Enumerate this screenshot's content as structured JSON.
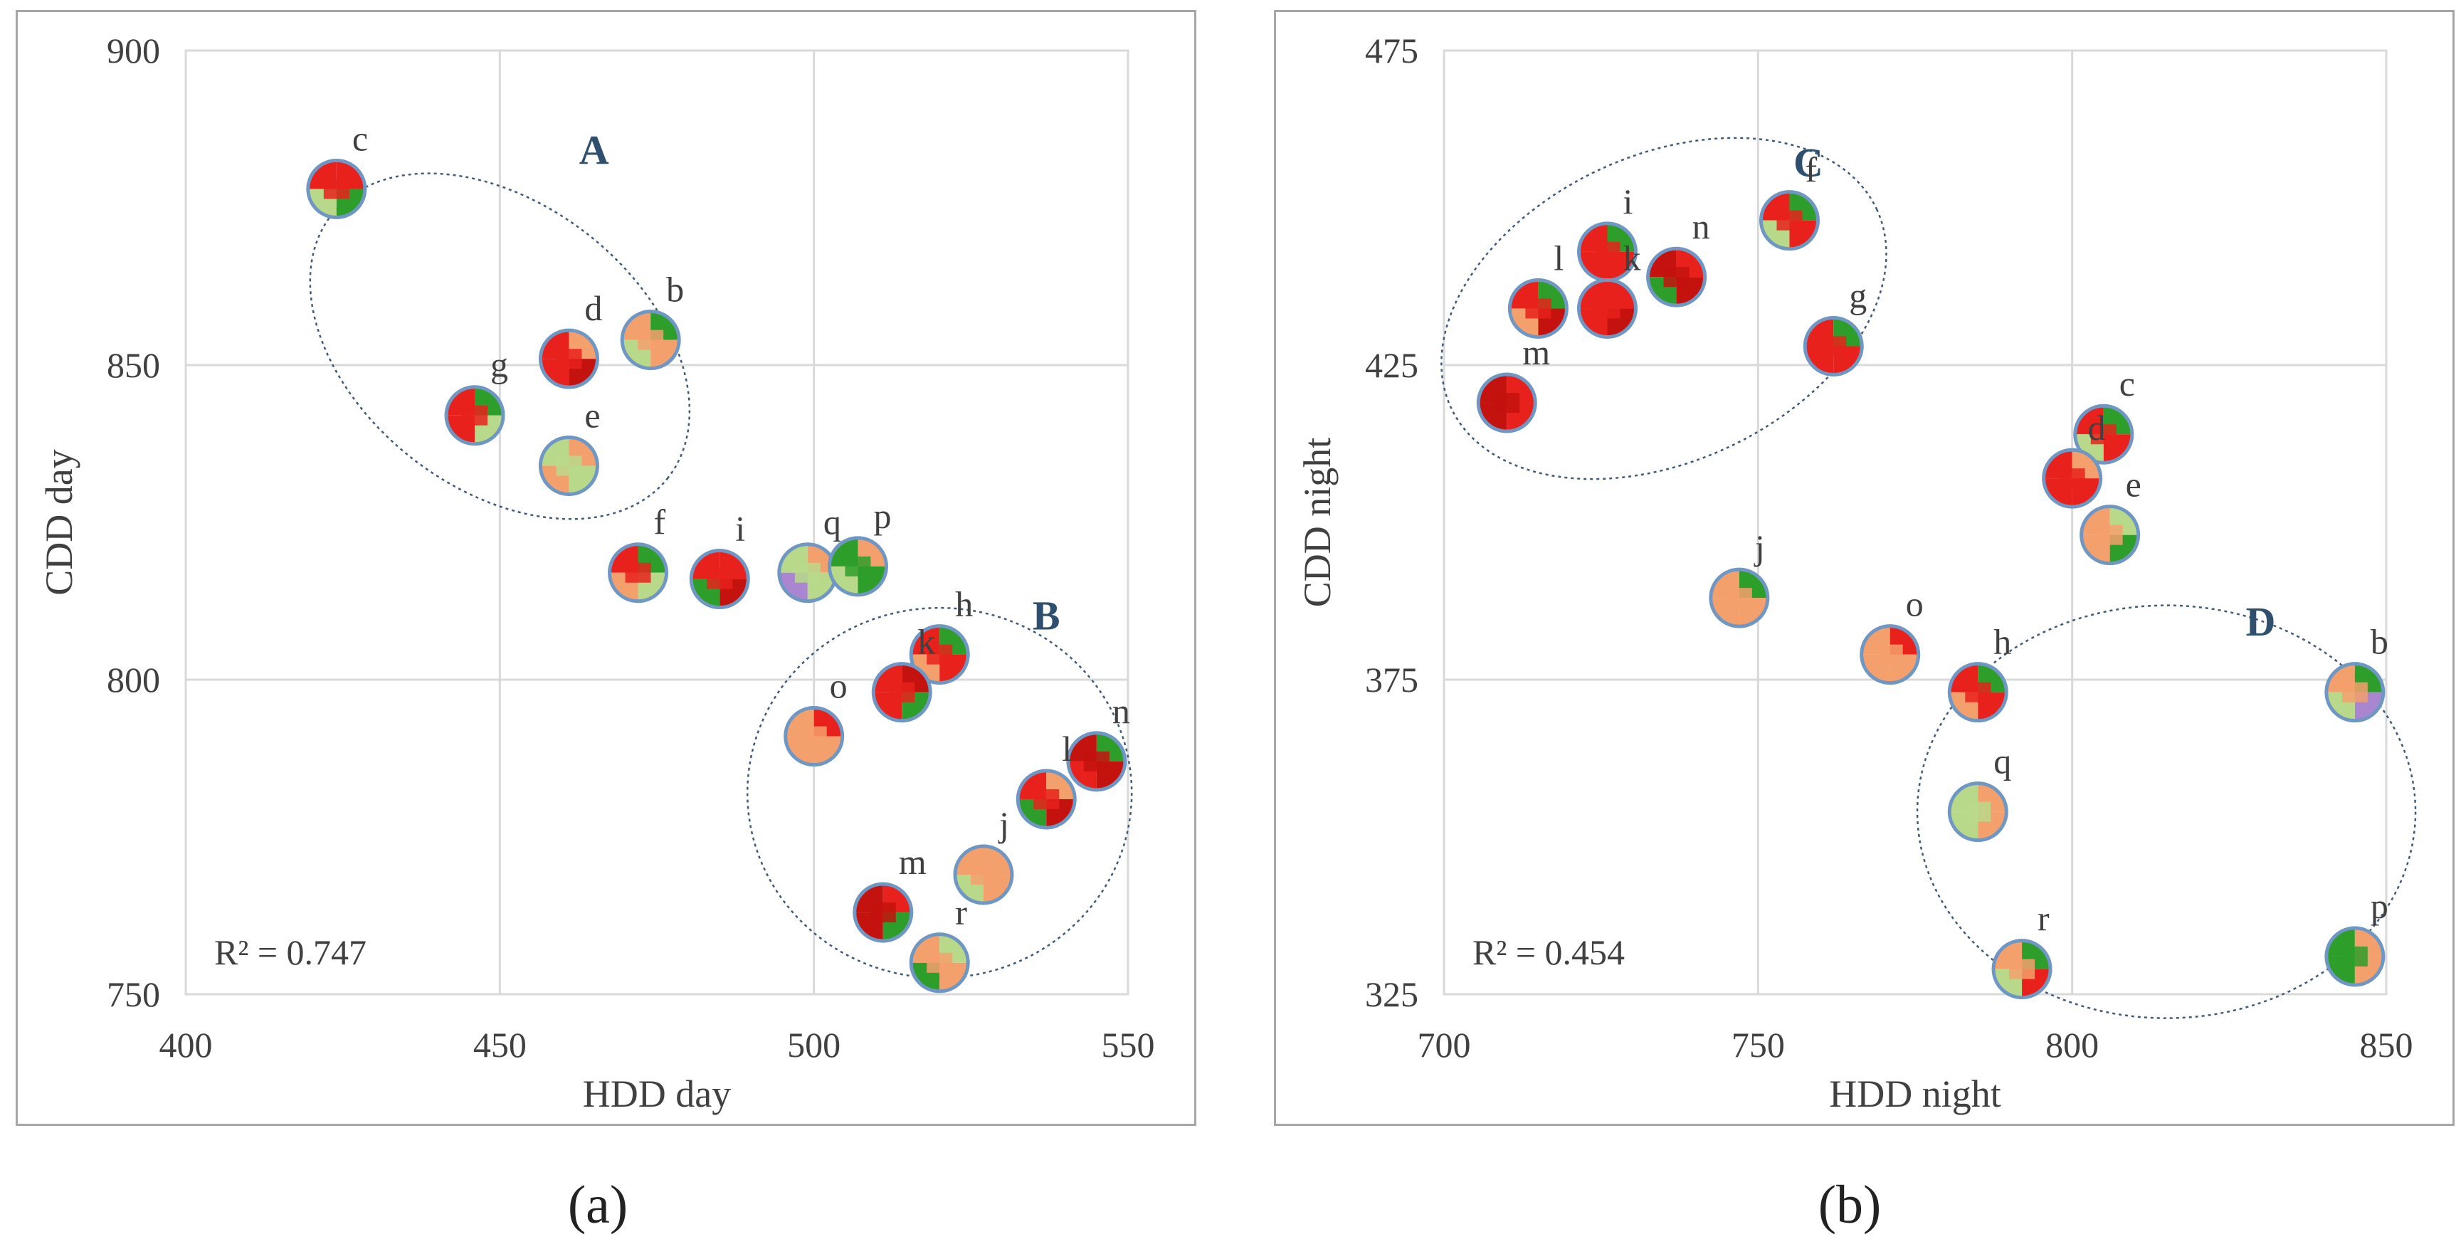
{
  "colors": {
    "frame": "#a6a6a6",
    "grid": "#d9d9d9",
    "axis_text": "#404040",
    "group_label": "#2f4f6f",
    "ellipse": "#3f5a78",
    "thumb_border": "#6f97c4",
    "red": "#e8211c",
    "dark_red": "#c4120e",
    "orange": "#f4a06c",
    "green": "#2e9e2a",
    "light_green": "#b9d98a",
    "purple": "#a986cf"
  },
  "captions": {
    "a": "(a)",
    "b": "(b)"
  },
  "chart_data": [
    {
      "id": "a",
      "type": "scatter",
      "xlabel": "HDD day",
      "ylabel": "CDD day",
      "xlim": [
        400,
        550
      ],
      "ylim": [
        750,
        900
      ],
      "xticks": [
        "400",
        "450",
        "500",
        "550"
      ],
      "yticks": [
        "750",
        "800",
        "850",
        "900"
      ],
      "xtick_values": [
        400,
        450,
        500,
        550
      ],
      "ytick_values": [
        750,
        800,
        850,
        900
      ],
      "r2_label": "R² = 0.747",
      "points": [
        {
          "label": "c",
          "x": 424,
          "y": 878,
          "mix": [
            "red",
            "red",
            "light_green",
            "green"
          ]
        },
        {
          "label": "b",
          "x": 474,
          "y": 854,
          "mix": [
            "orange",
            "green",
            "light_green",
            "orange"
          ]
        },
        {
          "label": "d",
          "x": 461,
          "y": 851,
          "mix": [
            "red",
            "orange",
            "red",
            "dark_red"
          ]
        },
        {
          "label": "g",
          "x": 446,
          "y": 842,
          "mix": [
            "red",
            "green",
            "red",
            "light_green"
          ]
        },
        {
          "label": "e",
          "x": 461,
          "y": 834,
          "mix": [
            "light_green",
            "orange",
            "orange",
            "light_green"
          ]
        },
        {
          "label": "f",
          "x": 472,
          "y": 817,
          "mix": [
            "red",
            "green",
            "orange",
            "light_green"
          ]
        },
        {
          "label": "i",
          "x": 485,
          "y": 816,
          "mix": [
            "red",
            "red",
            "green",
            "dark_red"
          ]
        },
        {
          "label": "q",
          "x": 499,
          "y": 817,
          "mix": [
            "light_green",
            "orange",
            "purple",
            "light_green"
          ]
        },
        {
          "label": "p",
          "x": 507,
          "y": 818,
          "mix": [
            "green",
            "orange",
            "light_green",
            "green"
          ]
        },
        {
          "label": "h",
          "x": 520,
          "y": 804,
          "mix": [
            "red",
            "green",
            "orange",
            "red"
          ]
        },
        {
          "label": "k",
          "x": 514,
          "y": 798,
          "mix": [
            "red",
            "dark_red",
            "red",
            "green"
          ]
        },
        {
          "label": "o",
          "x": 500,
          "y": 791,
          "mix": [
            "orange",
            "red",
            "orange",
            "orange"
          ]
        },
        {
          "label": "n",
          "x": 545,
          "y": 787,
          "mix": [
            "dark_red",
            "green",
            "red",
            "dark_red"
          ]
        },
        {
          "label": "l",
          "x": 537,
          "y": 781,
          "mix": [
            "red",
            "orange",
            "green",
            "dark_red"
          ]
        },
        {
          "label": "j",
          "x": 527,
          "y": 769,
          "mix": [
            "orange",
            "orange",
            "light_green",
            "orange"
          ]
        },
        {
          "label": "m",
          "x": 511,
          "y": 763,
          "mix": [
            "dark_red",
            "red",
            "dark_red",
            "green"
          ]
        },
        {
          "label": "r",
          "x": 520,
          "y": 755,
          "mix": [
            "orange",
            "light_green",
            "green",
            "orange"
          ]
        }
      ],
      "groups": [
        {
          "label": "A",
          "cx": 450,
          "cy": 853,
          "rx": 30,
          "ry": 3,
          "label_x": 465,
          "label_y": 882
        },
        {
          "label": "B",
          "cx": 520,
          "cy": 782,
          "rx": 27,
          "ry": 3,
          "label_x": 537,
          "label_y": 808
        }
      ]
    },
    {
      "id": "b",
      "type": "scatter",
      "xlabel": "HDD night",
      "ylabel": "CDD night",
      "xlim": [
        700,
        850
      ],
      "ylim": [
        325,
        475
      ],
      "xticks": [
        "700",
        "750",
        "800",
        "850"
      ],
      "yticks": [
        "325",
        "375",
        "425",
        "475"
      ],
      "xtick_values": [
        700,
        750,
        800,
        850
      ],
      "ytick_values": [
        325,
        375,
        425,
        475
      ],
      "r2_label": "R² = 0.454",
      "points": [
        {
          "label": "f",
          "x": 755,
          "y": 448,
          "mix": [
            "red",
            "green",
            "light_green",
            "red"
          ]
        },
        {
          "label": "i",
          "x": 726,
          "y": 443,
          "mix": [
            "red",
            "green",
            "red",
            "red"
          ]
        },
        {
          "label": "n",
          "x": 737,
          "y": 439,
          "mix": [
            "dark_red",
            "red",
            "green",
            "dark_red"
          ]
        },
        {
          "label": "l",
          "x": 715,
          "y": 434,
          "mix": [
            "red",
            "green",
            "orange",
            "dark_red"
          ]
        },
        {
          "label": "k",
          "x": 726,
          "y": 434,
          "mix": [
            "red",
            "red",
            "red",
            "dark_red"
          ]
        },
        {
          "label": "g",
          "x": 762,
          "y": 428,
          "mix": [
            "red",
            "green",
            "red",
            "red"
          ]
        },
        {
          "label": "m",
          "x": 710,
          "y": 419,
          "mix": [
            "dark_red",
            "red",
            "dark_red",
            "red"
          ]
        },
        {
          "label": "c",
          "x": 805,
          "y": 414,
          "mix": [
            "red",
            "green",
            "light_green",
            "red"
          ]
        },
        {
          "label": "d",
          "x": 800,
          "y": 407,
          "mix": [
            "red",
            "orange",
            "red",
            "red"
          ]
        },
        {
          "label": "e",
          "x": 806,
          "y": 398,
          "mix": [
            "orange",
            "light_green",
            "orange",
            "green"
          ]
        },
        {
          "label": "j",
          "x": 747,
          "y": 388,
          "mix": [
            "orange",
            "green",
            "orange",
            "orange"
          ]
        },
        {
          "label": "o",
          "x": 771,
          "y": 379,
          "mix": [
            "orange",
            "red",
            "orange",
            "orange"
          ]
        },
        {
          "label": "h",
          "x": 785,
          "y": 373,
          "mix": [
            "red",
            "green",
            "orange",
            "red"
          ]
        },
        {
          "label": "b",
          "x": 845,
          "y": 373,
          "mix": [
            "orange",
            "green",
            "light_green",
            "purple"
          ]
        },
        {
          "label": "q",
          "x": 785,
          "y": 354,
          "mix": [
            "light_green",
            "orange",
            "light_green",
            "orange"
          ]
        },
        {
          "label": "p",
          "x": 845,
          "y": 331,
          "mix": [
            "green",
            "orange",
            "green",
            "orange"
          ]
        },
        {
          "label": "r",
          "x": 792,
          "y": 329,
          "mix": [
            "orange",
            "green",
            "light_green",
            "red"
          ]
        }
      ],
      "groups": [
        {
          "label": "C",
          "cx": 735,
          "cy": 434,
          "rx": 30,
          "ry": 3,
          "label_x": 758,
          "label_y": 455
        },
        {
          "label": "D",
          "cx": 815,
          "cy": 354,
          "rx": 30,
          "ry": 3,
          "label_x": 830,
          "label_y": 382
        }
      ]
    }
  ]
}
